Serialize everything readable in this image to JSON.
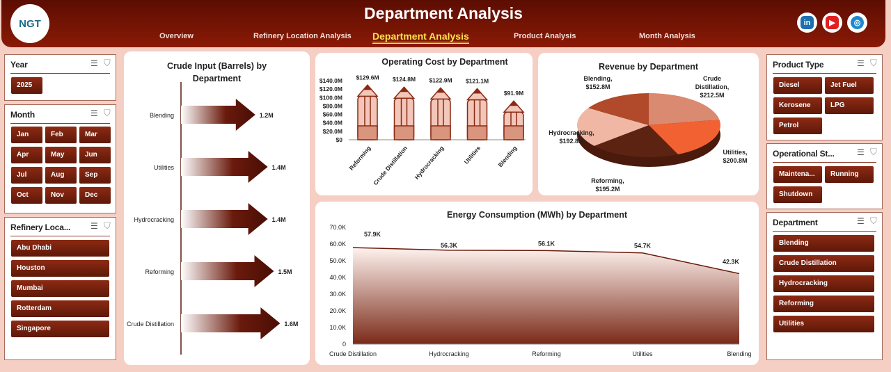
{
  "header": {
    "logo_text": "NGT",
    "title": "Department Analysis",
    "nav": [
      "Overview",
      "Refinery Location Analysis",
      "Department Analysis",
      "Product Analysis",
      "Month Analysis"
    ],
    "active_nav": 2,
    "social": [
      "linkedin-icon",
      "youtube-icon",
      "globe-icon"
    ]
  },
  "left_filters": {
    "year": {
      "title": "Year",
      "items": [
        "2025"
      ]
    },
    "month": {
      "title": "Month",
      "items": [
        "Jan",
        "Feb",
        "Mar",
        "Apr",
        "May",
        "Jun",
        "Jul",
        "Aug",
        "Sep",
        "Oct",
        "Nov",
        "Dec"
      ]
    },
    "refinery": {
      "title": "Refinery Loca...",
      "items": [
        "Abu Dhabi",
        "Houston",
        "Mumbai",
        "Rotterdam",
        "Singapore"
      ]
    }
  },
  "right_filters": {
    "product": {
      "title": "Product Type",
      "items": [
        "Diesel",
        "Jet Fuel",
        "Kerosene",
        "LPG",
        "Petrol"
      ]
    },
    "status": {
      "title": "Operational St...",
      "items": [
        "Maintena...",
        "Running",
        "Shutdown"
      ]
    },
    "department": {
      "title": "Department",
      "items": [
        "Blending",
        "Crude Distillation",
        "Hydrocracking",
        "Reforming",
        "Utilities"
      ]
    }
  },
  "chart_data": [
    {
      "type": "bar",
      "title": "Crude Input (Barrels) by Department",
      "orientation": "horizontal",
      "categories": [
        "Blending",
        "Utilities",
        "Hydrocracking",
        "Reforming",
        "Crude Distillation"
      ],
      "values": [
        1.2,
        1.4,
        1.4,
        1.5,
        1.6
      ],
      "labels": [
        "1.2M",
        "1.4M",
        "1.4M",
        "1.5M",
        "1.6M"
      ],
      "unit": "M barrels"
    },
    {
      "type": "bar",
      "title": "Operating Cost by Department",
      "categories": [
        "Reforming",
        "Crude Distillation",
        "Hydrocracking",
        "Utilities",
        "Blending"
      ],
      "values": [
        129.6,
        124.8,
        122.9,
        121.1,
        91.9
      ],
      "labels": [
        "$129.6M",
        "$124.8M",
        "$122.9M",
        "$121.1M",
        "$91.9M"
      ],
      "yticks": [
        "$0",
        "$20.0M",
        "$40.0M",
        "$60.0M",
        "$80.0M",
        "$100.0M",
        "$120.0M",
        "$140.0M"
      ],
      "ylim": [
        0,
        140
      ]
    },
    {
      "type": "pie",
      "title": "Revenue by Department",
      "categories": [
        "Crude Distillation",
        "Utilities",
        "Reforming",
        "Hydrocracking",
        "Blending"
      ],
      "values": [
        212.5,
        200.8,
        195.2,
        192.8,
        152.8
      ],
      "labels": [
        "Crude Distillation, $212.5M",
        "Utilities, $200.8M",
        "Reforming, $195.2M",
        "Hydrocracking, $192.8M",
        "Blending, $152.8M"
      ],
      "colors": [
        "#d98a70",
        "#f26132",
        "#5c2312",
        "#f0b8a4",
        "#b04a2a"
      ]
    },
    {
      "type": "area",
      "title": "Energy Consumption (MWh) by Department",
      "categories": [
        "Crude Distillation",
        "Hydrocracking",
        "Reforming",
        "Utilities",
        "Blending"
      ],
      "values": [
        57.9,
        56.3,
        56.1,
        54.7,
        42.3
      ],
      "labels": [
        "57.9K",
        "56.3K",
        "56.1K",
        "54.7K",
        "42.3K"
      ],
      "yticks": [
        "0",
        "10.0K",
        "20.0K",
        "30.0K",
        "40.0K",
        "50.0K",
        "60.0K",
        "70.0K"
      ],
      "ylim": [
        0,
        70
      ]
    }
  ],
  "colors": {
    "brand": "#7a1606",
    "accent": "#ffe14a"
  }
}
